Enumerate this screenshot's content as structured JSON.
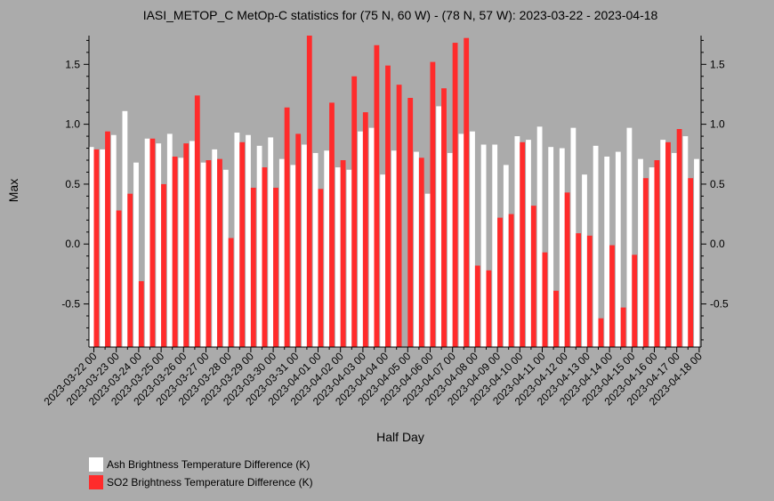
{
  "chart_data": {
    "type": "bar",
    "title": "IASI_METOP_C MetOp-C statistics for (75 N, 60 W) - (78 N, 57 W): 2023-03-22 - 2023-04-18",
    "xlabel": "Half Day",
    "ylabel": "Max",
    "ylim": [
      -0.86,
      1.74
    ],
    "yticks": [
      -0.5,
      0.0,
      0.5,
      1.0,
      1.5
    ],
    "ytick_labels": [
      "-0.5",
      "0.0",
      "0.5",
      "1.0",
      "1.5"
    ],
    "xtick_labels": [
      "2023-03-22 00",
      "2023-03-23 00",
      "2023-03-24 00",
      "2023-03-25 00",
      "2023-03-26 00",
      "2023-03-27 00",
      "2023-03-28 00",
      "2023-03-29 00",
      "2023-03-30 00",
      "2023-03-31 00",
      "2023-04-01 00",
      "2023-04-02 00",
      "2023-04-03 00",
      "2023-04-04 00",
      "2023-04-05 00",
      "2023-04-06 00",
      "2023-04-07 00",
      "2023-04-08 00",
      "2023-04-09 00",
      "2023-04-10 00",
      "2023-04-11 00",
      "2023-04-12 00",
      "2023-04-13 00",
      "2023-04-14 00",
      "2023-04-15 00",
      "2023-04-16 00",
      "2023-04-17 00",
      "2023-04-18 00"
    ],
    "legend_placement": "bottom-left",
    "series": [
      {
        "name": "Ash Brightness Temperature Difference (K)",
        "color": "#ffffff",
        "values": [
          0.81,
          0.79,
          0.91,
          1.11,
          0.68,
          0.88,
          0.84,
          0.92,
          0.72,
          0.86,
          0.68,
          0.79,
          0.62,
          0.93,
          0.91,
          0.82,
          0.89,
          0.71,
          0.66,
          0.83,
          0.76,
          0.78,
          0.64,
          0.62,
          0.94,
          0.97,
          0.58,
          0.78,
          null,
          0.77,
          0.42,
          1.15,
          0.76,
          0.92,
          0.94,
          0.83,
          0.83,
          0.66,
          0.9,
          0.87,
          0.98,
          0.81,
          0.8,
          0.97,
          0.58,
          0.82,
          0.73,
          0.77,
          0.97,
          0.71,
          0.64,
          0.87,
          0.76,
          0.9,
          0.71
        ]
      },
      {
        "name": "SO2 Brightness Temperature Difference (K)",
        "color": "#ff2b2b",
        "values": [
          0.79,
          0.94,
          0.28,
          0.42,
          -0.31,
          0.88,
          0.5,
          0.73,
          0.84,
          1.24,
          0.7,
          0.71,
          0.05,
          0.85,
          0.47,
          0.64,
          0.47,
          1.14,
          0.92,
          1.74,
          0.46,
          1.18,
          0.7,
          1.4,
          1.1,
          1.66,
          1.49,
          1.33,
          1.22,
          0.72,
          1.52,
          1.3,
          1.68,
          1.72,
          -0.18,
          -0.22,
          0.22,
          0.25,
          0.85,
          0.32,
          -0.07,
          -0.39,
          0.43,
          0.09,
          0.07,
          -0.62,
          -0.01,
          -0.53,
          -0.09,
          0.55,
          0.7,
          0.85,
          0.96,
          0.55,
          null
        ]
      }
    ]
  }
}
